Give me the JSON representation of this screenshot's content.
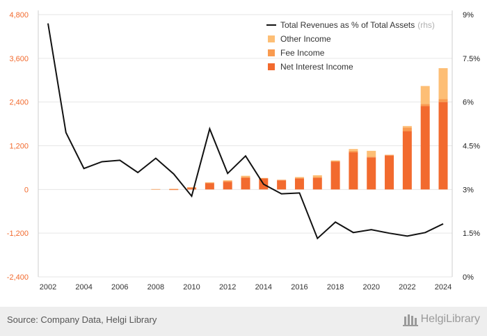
{
  "chart_data": {
    "type": "bar",
    "stacked": true,
    "categories": [
      "2002",
      "2003",
      "2004",
      "2005",
      "2006",
      "2007",
      "2008",
      "2009",
      "2010",
      "2011",
      "2012",
      "2013",
      "2014",
      "2015",
      "2016",
      "2017",
      "2018",
      "2019",
      "2020",
      "2021",
      "2022",
      "2023",
      "2024"
    ],
    "series": [
      {
        "name": "Net Interest Income",
        "color": "#f26a2e",
        "values": [
          0,
          0,
          0,
          0,
          0,
          0,
          0,
          -10,
          40,
          175,
          210,
          320,
          300,
          250,
          300,
          320,
          760,
          1020,
          880,
          930,
          1600,
          2290,
          2400
        ]
      },
      {
        "name": "Fee Income",
        "color": "#f99b50",
        "values": [
          0,
          0,
          0,
          0,
          0,
          0,
          10,
          15,
          20,
          15,
          25,
          25,
          15,
          15,
          20,
          20,
          20,
          40,
          20,
          20,
          100,
          60,
          80
        ]
      },
      {
        "name": "Other Income",
        "color": "#fdbe75",
        "values": [
          0,
          0,
          0,
          0,
          0,
          0,
          0,
          0,
          0,
          5,
          15,
          30,
          0,
          0,
          20,
          50,
          15,
          50,
          160,
          0,
          40,
          490,
          850
        ]
      }
    ],
    "line": {
      "name": "Total Revenues as % of Total Assets",
      "axis": "rhs",
      "axis_note": "(rhs)",
      "color": "#111111",
      "values": [
        8.7,
        4.95,
        3.72,
        3.95,
        4.0,
        3.58,
        4.07,
        3.53,
        2.77,
        5.08,
        3.55,
        4.15,
        3.18,
        2.85,
        2.88,
        1.32,
        1.88,
        1.52,
        1.62,
        1.5,
        1.4,
        1.52,
        1.82
      ]
    },
    "left_axis": {
      "ylim": [
        -2400,
        4800
      ],
      "ticks": [
        "4,800",
        "3,600",
        "2,400",
        "1,200",
        "0",
        "-1,200",
        "-2,400"
      ],
      "color": "#f26a2e"
    },
    "right_axis": {
      "ylim": [
        0,
        9
      ],
      "ticks": [
        "9%",
        "7.5%",
        "6%",
        "4.5%",
        "3%",
        "1.5%",
        "0%"
      ]
    },
    "x_ticks": [
      "2002",
      "2004",
      "2006",
      "2008",
      "2010",
      "2012",
      "2014",
      "2016",
      "2018",
      "2020",
      "2022",
      "2024"
    ],
    "grid": true,
    "legend_placement": "top-right"
  },
  "footer": {
    "source": "Source: Company Data, Helgi Library",
    "brand": "HelgiLibrary"
  }
}
